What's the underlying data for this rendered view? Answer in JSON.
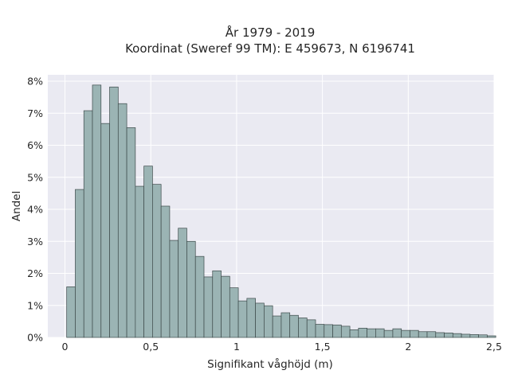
{
  "chart_data": {
    "type": "bar",
    "title_line1": "År 1979 - 2019",
    "title_line2": "Koordinat (Sweref 99 TM): E 459673, N 6196741",
    "xlabel": "Signifikant våghöjd (m)",
    "ylabel": "Andel",
    "xlim": [
      -0.1,
      2.5
    ],
    "ylim": [
      0,
      8.2
    ],
    "x_ticks": [
      {
        "value": 0,
        "label": "0"
      },
      {
        "value": 0.5,
        "label": "0,5"
      },
      {
        "value": 1,
        "label": "1"
      },
      {
        "value": 1.5,
        "label": "1,5"
      },
      {
        "value": 2,
        "label": "2"
      },
      {
        "value": 2.5,
        "label": "2,5"
      }
    ],
    "y_ticks": [
      {
        "value": 0,
        "label": "0%"
      },
      {
        "value": 1,
        "label": "1%"
      },
      {
        "value": 2,
        "label": "2%"
      },
      {
        "value": 3,
        "label": "3%"
      },
      {
        "value": 4,
        "label": "4%"
      },
      {
        "value": 5,
        "label": "5%"
      },
      {
        "value": 6,
        "label": "6%"
      },
      {
        "value": 7,
        "label": "7%"
      },
      {
        "value": 8,
        "label": "8%"
      }
    ],
    "grid": true,
    "bin_start": 0.01,
    "bin_width": 0.05,
    "values_percent": [
      1.58,
      4.62,
      7.08,
      7.88,
      6.68,
      7.82,
      7.3,
      6.55,
      4.72,
      5.35,
      4.78,
      4.1,
      3.03,
      3.41,
      3.0,
      2.53,
      1.89,
      2.08,
      1.91,
      1.55,
      1.14,
      1.22,
      1.07,
      0.99,
      0.67,
      0.77,
      0.69,
      0.61,
      0.55,
      0.41,
      0.4,
      0.39,
      0.35,
      0.24,
      0.29,
      0.27,
      0.27,
      0.22,
      0.27,
      0.22,
      0.22,
      0.18,
      0.18,
      0.15,
      0.14,
      0.12,
      0.1,
      0.09,
      0.08,
      0.05
    ],
    "colors": {
      "background": "#eaeaf2",
      "grid": "#ffffff",
      "bar_fill": "#9bb4b4",
      "bar_edge": "#3d4a4a"
    }
  }
}
